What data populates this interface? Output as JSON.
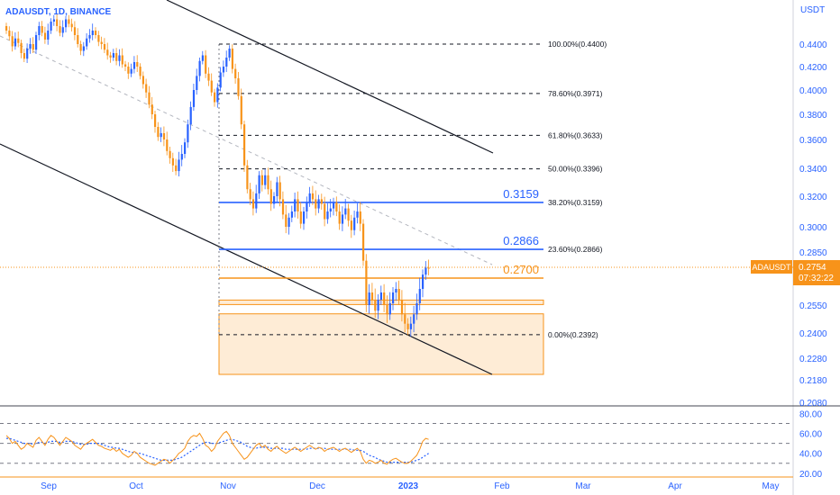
{
  "header": {
    "symbol_title": "ADAUSDT, 1D, BINANCE"
  },
  "currency": "USDT",
  "colors": {
    "up": "#2962ff",
    "down": "#f7931a",
    "accent_orange": "#f7931a",
    "blue_line": "#2962ff",
    "text": "#2962ff",
    "axis_text": "#2962ff"
  },
  "chart_data": [
    {
      "type": "candlestick",
      "title": "ADAUSDT, 1D, BINANCE",
      "x_ticks": [
        "Sep",
        "Oct",
        "Nov",
        "Dec",
        "2023",
        "Feb",
        "Mar",
        "Apr",
        "May"
      ],
      "y_ticks": [
        "0.4400",
        "0.4200",
        "0.4000",
        "0.3800",
        "0.3600",
        "0.3400",
        "0.3200",
        "0.3000",
        "0.2850",
        "0.2700",
        "0.2550",
        "0.2400",
        "0.2280",
        "0.2180",
        "0.2080"
      ],
      "ylim": [
        0.208,
        0.46
      ],
      "current_price": {
        "symbol": "ADAUSDT",
        "value": "0.2754",
        "countdown": "07:32:22"
      },
      "fib_levels": [
        {
          "label": "100.00%(0.4400)",
          "price": 0.44
        },
        {
          "label": "78.60%(0.3971)",
          "price": 0.3971
        },
        {
          "label": "61.80%(0.3633)",
          "price": 0.3633
        },
        {
          "label": "50.00%(0.3396)",
          "price": 0.3396
        },
        {
          "label": "38.20%(0.3159)",
          "price": 0.3159
        },
        {
          "label": "23.60%(0.2866)",
          "price": 0.2866
        },
        {
          "label": "0.00%(0.2392)",
          "price": 0.2392
        }
      ],
      "horizontal_levels": [
        {
          "label": "0.3159",
          "price": 0.3159,
          "color": "#2962ff"
        },
        {
          "label": "0.2866",
          "price": 0.2866,
          "color": "#2962ff"
        },
        {
          "label": "0.2700",
          "price": 0.27,
          "color": "#f7931a"
        }
      ],
      "zones": [
        {
          "name": "support-band",
          "top": 0.2578,
          "bottom": 0.2553
        },
        {
          "name": "demand-zone",
          "top": 0.2503,
          "bottom": 0.2205
        }
      ],
      "candles_close": [
        0.452,
        0.447,
        0.438,
        0.445,
        0.441,
        0.432,
        0.427,
        0.436,
        0.44,
        0.435,
        0.448,
        0.456,
        0.45,
        0.444,
        0.452,
        0.46,
        0.462,
        0.456,
        0.45,
        0.455,
        0.462,
        0.458,
        0.455,
        0.448,
        0.44,
        0.434,
        0.438,
        0.445,
        0.448,
        0.452,
        0.448,
        0.442,
        0.44,
        0.435,
        0.43,
        0.428,
        0.432,
        0.425,
        0.43,
        0.422,
        0.42,
        0.414,
        0.418,
        0.424,
        0.42,
        0.412,
        0.405,
        0.398,
        0.388,
        0.38,
        0.37,
        0.362,
        0.365,
        0.36,
        0.352,
        0.347,
        0.342,
        0.338,
        0.346,
        0.35,
        0.358,
        0.372,
        0.386,
        0.4,
        0.412,
        0.425,
        0.43,
        0.414,
        0.408,
        0.398,
        0.39,
        0.402,
        0.415,
        0.42,
        0.428,
        0.436,
        0.418,
        0.41,
        0.395,
        0.372,
        0.342,
        0.325,
        0.318,
        0.312,
        0.322,
        0.335,
        0.328,
        0.335,
        0.325,
        0.315,
        0.32,
        0.33,
        0.318,
        0.308,
        0.3,
        0.306,
        0.31,
        0.318,
        0.31,
        0.302,
        0.31,
        0.316,
        0.322,
        0.318,
        0.312,
        0.318,
        0.315,
        0.305,
        0.31,
        0.312,
        0.316,
        0.31,
        0.302,
        0.308,
        0.312,
        0.304,
        0.298,
        0.306,
        0.31,
        0.302,
        0.28,
        0.255,
        0.262,
        0.258,
        0.252,
        0.258,
        0.262,
        0.255,
        0.25,
        0.256,
        0.262,
        0.264,
        0.258,
        0.25,
        0.245,
        0.242,
        0.245,
        0.25,
        0.256,
        0.264,
        0.272,
        0.276,
        0.2754
      ],
      "rsi": {
        "yticks": [
          "80.00",
          "60.00",
          "40.00",
          "20.00"
        ],
        "ylim": [
          18,
          84
        ],
        "levels": [
          70,
          50,
          30
        ],
        "values": [
          58,
          55,
          50,
          52,
          48,
          44,
          46,
          50,
          48,
          46,
          53,
          56,
          52,
          48,
          54,
          58,
          56,
          52,
          48,
          52,
          56,
          54,
          52,
          48,
          46,
          44,
          48,
          50,
          52,
          54,
          51,
          48,
          47,
          45,
          44,
          43,
          45,
          42,
          44,
          40,
          38,
          36,
          38,
          42,
          40,
          36,
          34,
          32,
          30,
          29,
          28,
          30,
          32,
          34,
          33,
          30,
          33,
          36,
          40,
          42,
          45,
          52,
          56,
          58,
          57,
          60,
          55,
          48,
          46,
          42,
          45,
          52,
          56,
          60,
          62,
          58,
          50,
          46,
          42,
          38,
          34,
          36,
          40,
          44,
          48,
          50,
          46,
          48,
          44,
          42,
          45,
          47,
          44,
          42,
          40,
          42,
          44,
          46,
          44,
          42,
          44,
          46,
          48,
          46,
          44,
          46,
          45,
          42,
          44,
          45,
          46,
          44,
          42,
          44,
          45,
          43,
          41,
          43,
          45,
          42,
          34,
          30,
          33,
          32,
          30,
          31,
          33,
          30,
          29,
          32,
          34,
          35,
          33,
          31,
          30,
          30,
          32,
          35,
          38,
          44,
          52,
          55,
          54
        ],
        "ma": [
          55,
          55,
          54,
          53,
          52,
          51,
          50,
          50,
          50,
          49,
          50,
          51,
          51,
          50,
          51,
          52,
          52,
          52,
          51,
          51,
          52,
          52,
          52,
          51,
          50,
          49,
          49,
          49,
          50,
          50,
          50,
          50,
          49,
          48,
          47,
          46,
          46,
          45,
          45,
          44,
          43,
          42,
          41,
          41,
          40,
          40,
          39,
          38,
          37,
          36,
          35,
          34,
          33,
          33,
          33,
          33,
          33,
          34,
          35,
          36,
          38,
          40,
          42,
          44,
          46,
          48,
          50,
          51,
          51,
          50,
          50,
          50,
          51,
          52,
          53,
          54,
          54,
          53,
          52,
          51,
          49,
          47,
          46,
          45,
          45,
          46,
          46,
          46,
          46,
          45,
          45,
          45,
          45,
          45,
          44,
          44,
          44,
          44,
          44,
          44,
          44,
          44,
          45,
          45,
          45,
          45,
          45,
          45,
          44,
          44,
          44,
          44,
          44,
          44,
          44,
          44,
          44,
          43,
          43,
          43,
          42,
          40,
          38,
          37,
          36,
          34,
          33,
          32,
          31,
          31,
          31,
          31,
          31,
          31,
          31,
          31,
          31,
          32,
          33,
          34,
          36,
          38,
          40
        ]
      }
    }
  ]
}
